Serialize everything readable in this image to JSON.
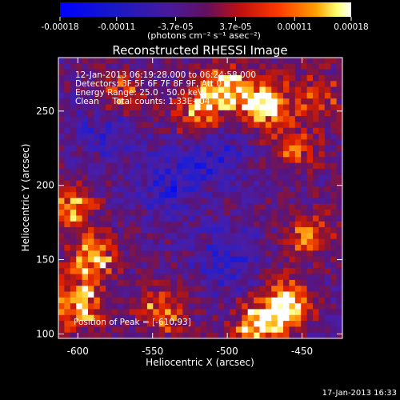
{
  "chart_data": {
    "type": "heatmap",
    "title": "Reconstructed RHESSI Image",
    "xlabel": "Heliocentric X (arcsec)",
    "ylabel": "Heliocentric Y (arcsec)",
    "xlim": [
      -613,
      -423
    ],
    "ylim": [
      97,
      286
    ],
    "x_ticks": [
      "-600",
      "-550",
      "-500",
      "-450"
    ],
    "x_tick_values": [
      -600,
      -550,
      -500,
      -450
    ],
    "y_ticks": [
      "100",
      "150",
      "200",
      "250"
    ],
    "y_tick_values": [
      100,
      150,
      200,
      250
    ],
    "colorbar": {
      "ticks": [
        "-0.00018",
        "-0.00011",
        "-3.7e-05",
        "3.7e-05",
        "0.00011",
        "0.00018"
      ],
      "tick_values": [
        -0.00018,
        -0.00011,
        -3.7e-05,
        3.7e-05,
        0.00011,
        0.00018
      ],
      "range": [
        -0.00018,
        0.00018
      ],
      "units": "(photons cm⁻² s⁻¹ asec⁻²)",
      "colors": [
        "#0000ff",
        "#1010d0",
        "#5a1aa0",
        "#a01010",
        "#ff2a00",
        "#ff9a00",
        "#ffff80",
        "#ffffff"
      ]
    },
    "annotations": [
      "12-Jan-2013 06:19:28.000 to 06:24:58.000",
      "Detectors: 3F 5F 6F 7F 8F 9F, Att 0",
      "Energy Range: 25.0 - 50.0 keV",
      "Clean     Total counts: 1.33E+04"
    ],
    "peak_label": "Position of Peak = [-610,93]",
    "hotspots": [
      {
        "x": -475,
        "y": 255,
        "strength": 1.0
      },
      {
        "x": -500,
        "y": 265,
        "strength": 0.85
      },
      {
        "x": -520,
        "y": 250,
        "strength": 0.7
      },
      {
        "x": -460,
        "y": 120,
        "strength": 0.95
      },
      {
        "x": -480,
        "y": 105,
        "strength": 0.9
      },
      {
        "x": -600,
        "y": 120,
        "strength": 0.85
      },
      {
        "x": -590,
        "y": 150,
        "strength": 0.8
      },
      {
        "x": -605,
        "y": 185,
        "strength": 0.7
      },
      {
        "x": -545,
        "y": 115,
        "strength": 0.6
      },
      {
        "x": -570,
        "y": 260,
        "strength": 0.6
      },
      {
        "x": -445,
        "y": 165,
        "strength": 0.65
      },
      {
        "x": -440,
        "y": 260,
        "strength": 0.55
      },
      {
        "x": -455,
        "y": 225,
        "strength": 0.45
      }
    ],
    "coolspots": [
      {
        "x": -510,
        "y": 220
      },
      {
        "x": -540,
        "y": 200
      },
      {
        "x": -580,
        "y": 240
      },
      {
        "x": -500,
        "y": 150
      }
    ]
  },
  "footer": {
    "timestamp": "17-Jan-2013 16:33"
  }
}
